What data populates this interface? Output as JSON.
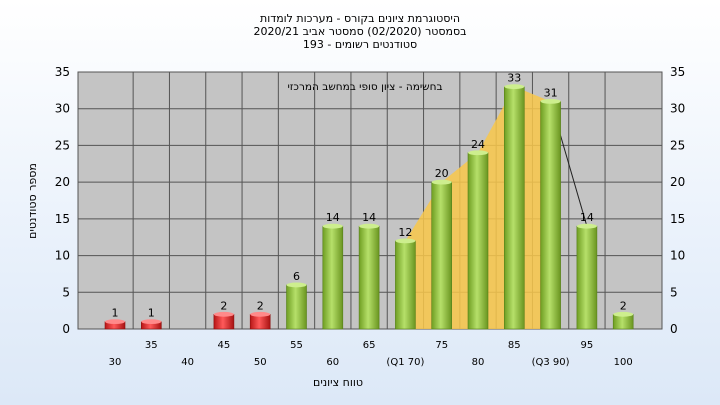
{
  "chart_data": {
    "type": "bar",
    "title_lines": [
      "היסטוגרמת ציונים בקורס - מערכות לומדות",
      "בסמסטר   (02/2020)   סמסטר אביב  2020/21",
      "סטודנטים רשומים - 193"
    ],
    "annotation": "בחשימה - ציון סופי במחשב המרכזי",
    "xlabel": "טווח ציונים",
    "ylabel": "מספר סטודנטים",
    "ylim": [
      0,
      35
    ],
    "yticks": [
      0,
      5,
      10,
      15,
      20,
      25,
      30,
      35
    ],
    "categories": [
      "30",
      "35",
      "40",
      "45",
      "50",
      "55",
      "60",
      "65",
      "(Q1 70)",
      "75",
      "80",
      "85",
      "(Q3 90)",
      "95",
      "100"
    ],
    "values": [
      1,
      1,
      null,
      2,
      2,
      6,
      14,
      14,
      12,
      20,
      24,
      33,
      31,
      14,
      2
    ],
    "fail_below": "55",
    "colors": {
      "fail": "#e02a2a",
      "pass": "#8fc33d",
      "band": "#f9c84a",
      "plot_bg": "#c4c4c4"
    },
    "grid": true
  }
}
